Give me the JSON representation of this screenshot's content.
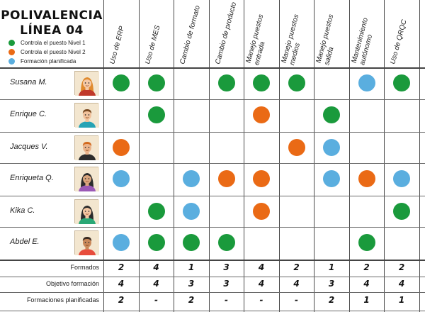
{
  "title": {
    "line1": "POLIVALENCIA",
    "line2": "LÍNEA 04"
  },
  "colors": {
    "level1": "#1a9a3c",
    "level2": "#ea6a15",
    "planned": "#5aaedf"
  },
  "legend": [
    {
      "label": "Controla el puesto Nivel 1",
      "status": "level1"
    },
    {
      "label": "Controla el puesto Nivel 2",
      "status": "level2"
    },
    {
      "label": "Formación planificada",
      "status": "planned"
    }
  ],
  "columns": [
    "Uso de ERP",
    "Uso de MES",
    "Cambio de formato",
    "Cambio de producto",
    "Manejo puestos entrada",
    "Manejo puestos medios",
    "Manejo puestos salida",
    "Mantenimiento autónomo",
    "Uso de QRQC"
  ],
  "people": [
    {
      "name": "Susana M.",
      "avatar": "woman-avatar-icon",
      "skills": [
        "level1",
        "level1",
        "",
        "level1",
        "level1",
        "level1",
        "",
        "planned",
        "level1"
      ]
    },
    {
      "name": "Enrique C.",
      "avatar": "man-avatar-icon",
      "skills": [
        "",
        "level1",
        "",
        "",
        "level2",
        "",
        "level1",
        "",
        ""
      ]
    },
    {
      "name": "Jacques V.",
      "avatar": "man-avatar-icon",
      "skills": [
        "level2",
        "",
        "",
        "",
        "",
        "level2",
        "planned",
        "",
        ""
      ]
    },
    {
      "name": "Enriqueta Q.",
      "avatar": "woman-avatar-icon",
      "skills": [
        "planned",
        "",
        "planned",
        "level2",
        "level2",
        "",
        "planned",
        "level2",
        "planned"
      ]
    },
    {
      "name": "Kika C.",
      "avatar": "woman-avatar-icon",
      "skills": [
        "",
        "level1",
        "planned",
        "",
        "level2",
        "",
        "",
        "",
        "level1"
      ]
    },
    {
      "name": "Abdel E.",
      "avatar": "man-avatar-icon",
      "skills": [
        "planned",
        "level1",
        "level1",
        "level1",
        "",
        "",
        "",
        "level1",
        ""
      ]
    }
  ],
  "footer": [
    {
      "label": "Formados",
      "values": [
        "2",
        "4",
        "1",
        "3",
        "4",
        "2",
        "1",
        "2",
        "2"
      ]
    },
    {
      "label": "Objetivo formación",
      "values": [
        "4",
        "4",
        "3",
        "3",
        "4",
        "4",
        "3",
        "4",
        "4"
      ]
    },
    {
      "label": "Formaciones planificadas",
      "values": [
        "2",
        "-",
        "2",
        "-",
        "-",
        "-",
        "2",
        "1",
        "1"
      ]
    }
  ]
}
